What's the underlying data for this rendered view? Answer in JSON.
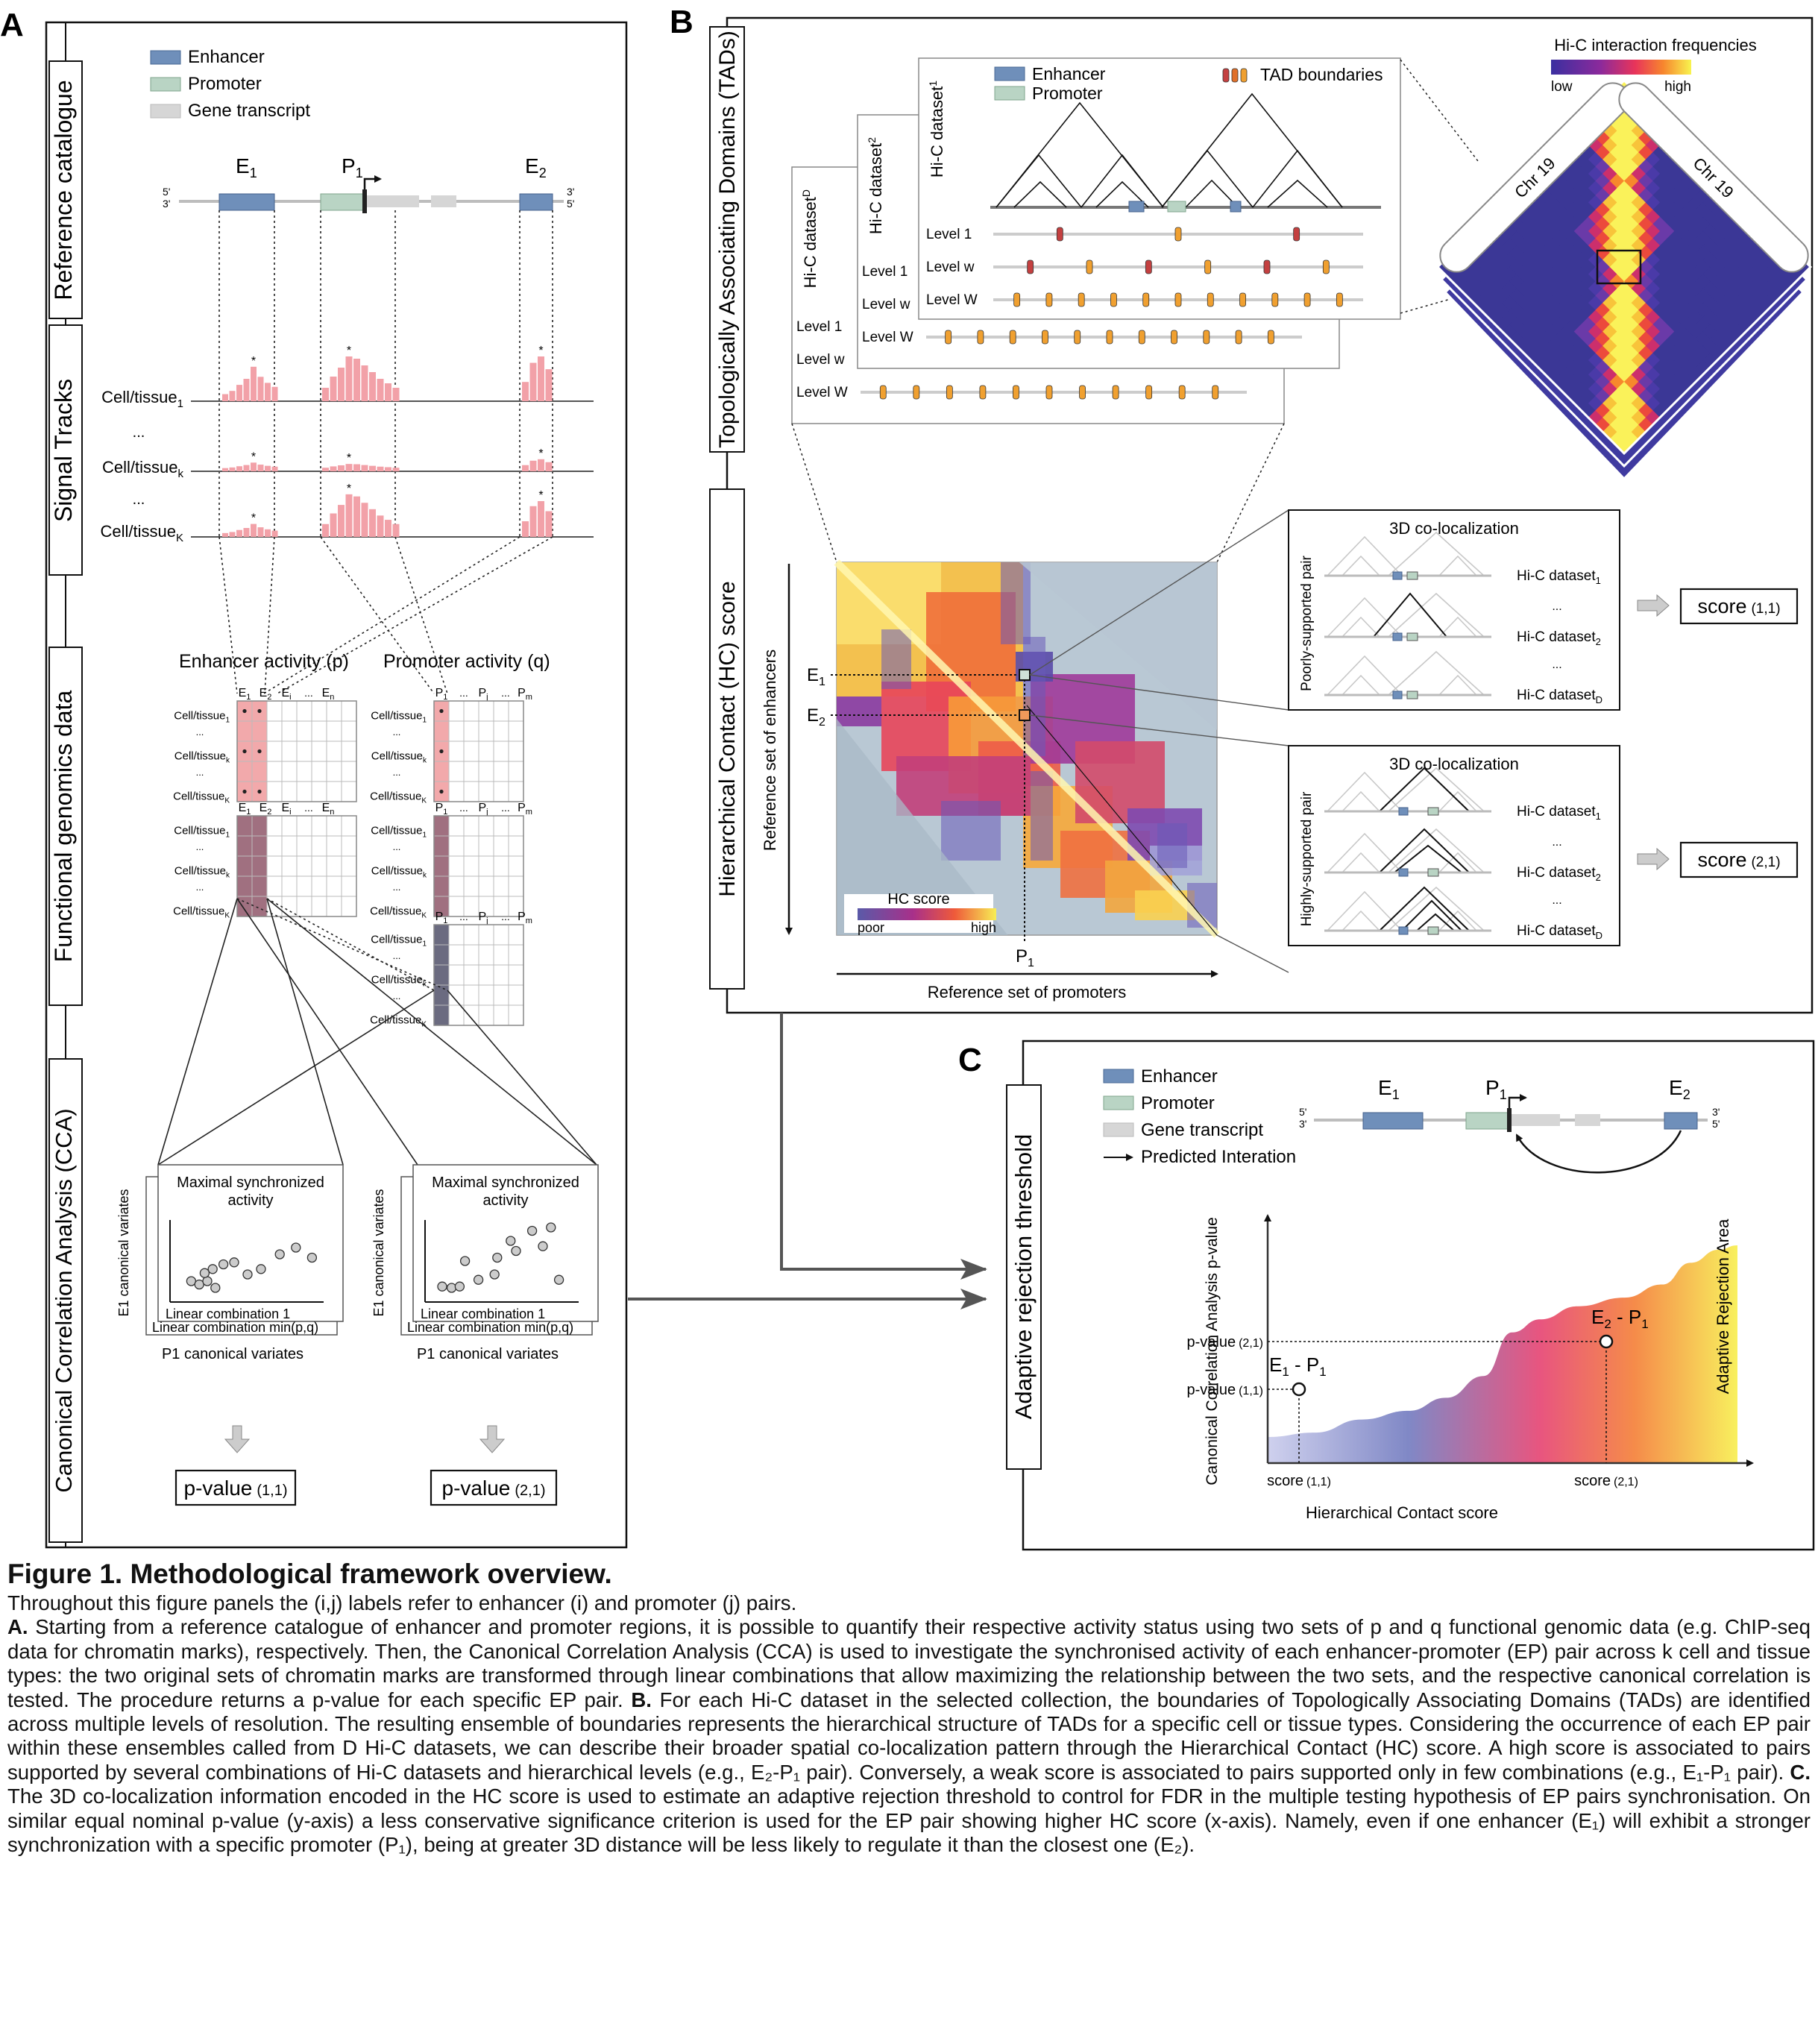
{
  "panel_a": {
    "letter": "A",
    "legend": [
      "Enhancer",
      "Promoter",
      "Gene transcript"
    ],
    "section_labels": [
      "Reference catalogue",
      "Signal Tracks",
      "Functional genomics data",
      "Canonical Correlation Analysis (CCA)"
    ],
    "elements": {
      "e1": "E",
      "e1_sub": "1",
      "p1": "P",
      "p1_sub": "1",
      "e2": "E",
      "e2_sub": "2"
    },
    "strand_left": [
      "5'",
      "3'"
    ],
    "strand_right": [
      "3'",
      "5'"
    ],
    "tracks": [
      {
        "label": "Cell/tissue",
        "sub": "1"
      },
      {
        "label": "...",
        "sub": ""
      },
      {
        "label": "Cell/tissue",
        "sub": "k"
      },
      {
        "label": "...",
        "sub": ""
      },
      {
        "label": "Cell/tissue",
        "sub": "K"
      }
    ],
    "enhancer_activity": "Enhancer activity (p)",
    "promoter_activity": "Promoter activity (q)",
    "row_labels": [
      "Cell/tissue",
      "...",
      "Cell/tissue",
      "...",
      "Cell/tissue"
    ],
    "row_subs": [
      "1",
      "",
      "k",
      "",
      "K"
    ],
    "enh_cols": [
      "E",
      "E",
      "E",
      "...",
      "E"
    ],
    "enh_col_subs": [
      "1",
      "2",
      "i",
      "",
      "n"
    ],
    "pro_cols": [
      "P",
      "...",
      "P",
      "...",
      "P"
    ],
    "pro_col_subs": [
      "1",
      "",
      "j",
      "",
      "m"
    ],
    "scatter_title": "Maximal synchronized activity",
    "scatter_xlabel_front": "Linear combination 1",
    "scatter_xlabel_back": "Linear combination min(p,q)",
    "scatter_ylabel": "E1 canonical variates",
    "scatter_caption": "P1 canonical variates",
    "pvalues": [
      {
        "label": "p-value",
        "idx": "(1,1)"
      },
      {
        "label": "p-value",
        "idx": "(2,1)"
      }
    ]
  },
  "panel_b": {
    "letter": "B",
    "section_labels": [
      "Topologically Associating Domains (TADs)",
      "Hierarchical Contact (HC) score"
    ],
    "datasets": [
      {
        "name": "Hi-C dataset",
        "sub": "D"
      },
      {
        "name": "Hi-C dataset",
        "sub": "2"
      },
      {
        "name": "Hi-C dataset",
        "sub": "1"
      }
    ],
    "legend": [
      "Enhancer",
      "Promoter",
      "TAD boundaries"
    ],
    "levels": [
      "Level 1",
      "Level w",
      "Level W"
    ],
    "heatmap_title": "Hi-C interaction frequencies",
    "heatmap_low": "low",
    "heatmap_high": "high",
    "chr_label": "Chr 19",
    "hc_title": "HC score",
    "hc_poor": "poor",
    "hc_high": "high",
    "y_axis": "Reference set of enhancers",
    "x_axis": "Reference set of promoters",
    "p1": "P",
    "e_labels": [
      "E",
      "E"
    ],
    "coloc_title": "3D co-localization",
    "poor_pair": "Poorly-supported pair",
    "high_pair": "Highly-supported pair",
    "coloc_rows": [
      {
        "name": "Hi-C dataset",
        "sub": "1"
      },
      {
        "name": "...",
        "sub": ""
      },
      {
        "name": "Hi-C dataset",
        "sub": "2"
      },
      {
        "name": "...",
        "sub": ""
      },
      {
        "name": "Hi-C dataset",
        "sub": "D"
      }
    ],
    "scores": [
      {
        "label": "score",
        "idx": "(1,1)"
      },
      {
        "label": "score",
        "idx": "(2,1)"
      }
    ]
  },
  "panel_c": {
    "letter": "C",
    "section_label": "Adaptive rejection threshold",
    "legend": [
      "Enhancer",
      "Promoter",
      "Gene transcript",
      "Predicted Interation"
    ],
    "elements": [
      "E",
      "P",
      "E"
    ],
    "element_subs": [
      "1",
      "1",
      "2"
    ],
    "strand_left": [
      "5'",
      "3'"
    ],
    "strand_right": [
      "3'",
      "5'"
    ],
    "chart_data": {
      "type": "area",
      "title": "",
      "xlabel": "Hierarchical Contact score",
      "ylabel": "Canonical Correlation Analysis p-value",
      "area_label": "Adaptive Rejection Area",
      "points": [
        {
          "label": "E1 - P1",
          "x_tick": "score (1,1)",
          "y_tick": "p-value (1,1)"
        },
        {
          "label": "E2 - P1",
          "x_tick": "score (2,1)",
          "y_tick": "p-value (2,1)"
        }
      ],
      "gradient": [
        "#c7c9ec",
        "#7f86c4",
        "#e8557f",
        "#f58b4a",
        "#f7ee5e"
      ]
    }
  },
  "caption": {
    "title": "Figure 1. Methodological framework overview.",
    "line1": "Throughout this figure panels the (i,j) labels refer to enhancer (i) and promoter (j) pairs.",
    "a_label": "A.",
    "a_text": " Starting from a reference catalogue of enhancer and promoter regions, it is possible to quantify their respective activity status using two sets of p and q functional genomic data (e.g. ChIP-seq data for chromatin marks), respectively. Then, the Canonical Correlation Analysis (CCA) is used to investigate the synchronised activity of each enhancer-promoter (EP) pair across k cell and tissue types: the two original sets of chromatin marks are transformed through linear combinations that allow maximizing the relationship between the two sets, and the respective canonical correlation is tested. The procedure returns a p-value for each specific EP pair. ",
    "b_label": "B.",
    "b_text": " For each Hi-C dataset in the selected collection, the boundaries of Topologically Associating Domains (TADs) are identified across multiple levels of resolution. The resulting ensemble of boundaries represents the hierarchical structure of TADs for a specific cell or tissue types. Considering the occurrence of each EP pair within these ensembles called from D Hi-C datasets, we can describe their broader spatial co-localization pattern through the Hierarchical Contact (HC) score. A high score is associated to pairs supported by several combinations of Hi-C datasets and hierarchical levels (e.g., E₂-P₁ pair). Conversely, a weak score is associated to pairs supported only in few combinations (e.g., E₁-P₁ pair). ",
    "c_label": "C.",
    "c_text": " The 3D co-localization information encoded in the HC score is used to estimate an adaptive rejection threshold to control for FDR in the multiple testing hypothesis of EP pairs synchronisation. On similar equal nominal p-value (y-axis) a less conservative significance criterion is used for the EP pair showing higher HC score (x-axis). Namely, even if one enhancer (E₁) will exhibit a stronger synchronization with a specific promoter (P₁), being at greater 3D distance will be less likely to regulate it than the closest one (E₂)."
  }
}
